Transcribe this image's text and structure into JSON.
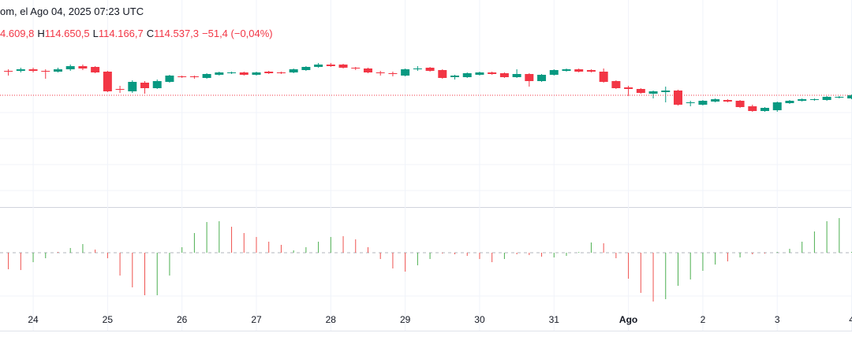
{
  "header": {
    "title": "om, el Ago 04, 2025 07:23 UTC",
    "ohlc": [
      "4.609,8",
      "H",
      "114.650,5",
      "L",
      "114.166,7",
      "C",
      "114.537,3",
      "−51,4 (−0,04%)"
    ]
  },
  "chart_data": [
    {
      "type": "candlestick",
      "up_color": "#089981",
      "down_color": "#f23645",
      "price_line_color": "#f23645",
      "ylim": [
        100600,
        123800
      ],
      "categories": [
        null,
        null,
        "24",
        null,
        null,
        null,
        null,
        null,
        "25",
        null,
        null,
        null,
        null,
        null,
        "26",
        null,
        null,
        null,
        null,
        null,
        "27",
        null,
        null,
        null,
        null,
        null,
        "28",
        null,
        null,
        null,
        null,
        null,
        "29",
        null,
        null,
        null,
        null,
        null,
        "30",
        null,
        null,
        null,
        null,
        null,
        "31",
        null,
        null,
        null,
        null,
        null,
        "Ago",
        null,
        null,
        null,
        null,
        null,
        "2",
        null,
        null,
        null,
        null,
        null,
        "3",
        null,
        null,
        null,
        null,
        null,
        "4"
      ],
      "values": [
        [
          117800,
          118000,
          117200,
          117700
        ],
        [
          117800,
          118200,
          117600,
          118000
        ],
        [
          118000,
          118200,
          117600,
          117800
        ],
        [
          117800,
          118000,
          116800,
          117700
        ],
        [
          117700,
          118200,
          117600,
          118000
        ],
        [
          118000,
          118600,
          117800,
          118400
        ],
        [
          118400,
          118600,
          117900,
          118100
        ],
        [
          118300,
          118400,
          117500,
          117600
        ],
        [
          117700,
          117800,
          115100,
          115200
        ],
        [
          115500,
          115900,
          115000,
          115400
        ],
        [
          115200,
          116600,
          115000,
          116400
        ],
        [
          116300,
          116500,
          114900,
          115600
        ],
        [
          115600,
          116700,
          115500,
          116500
        ],
        [
          116400,
          117300,
          116300,
          117200
        ],
        [
          117100,
          117200,
          116900,
          117000
        ],
        [
          117100,
          117200,
          116800,
          117000
        ],
        [
          116900,
          117500,
          116800,
          117400
        ],
        [
          117300,
          117700,
          117200,
          117600
        ],
        [
          117500,
          117700,
          117400,
          117600
        ],
        [
          117600,
          117700,
          117200,
          117300
        ],
        [
          117300,
          117700,
          117200,
          117600
        ],
        [
          117700,
          117800,
          117400,
          117500
        ],
        [
          117600,
          117700,
          117400,
          117500
        ],
        [
          117600,
          118100,
          117500,
          118000
        ],
        [
          117900,
          118400,
          117800,
          118300
        ],
        [
          118300,
          118800,
          118200,
          118600
        ],
        [
          118600,
          118800,
          118300,
          118400
        ],
        [
          118600,
          118700,
          118100,
          118200
        ],
        [
          118200,
          118300,
          117900,
          118100
        ],
        [
          118100,
          118200,
          117500,
          117600
        ],
        [
          117600,
          117800,
          117200,
          117500
        ],
        [
          117500,
          117700,
          117100,
          117400
        ],
        [
          117200,
          118100,
          117100,
          118000
        ],
        [
          118000,
          118400,
          117800,
          118100
        ],
        [
          118200,
          118300,
          117700,
          117800
        ],
        [
          117900,
          118000,
          116800,
          116900
        ],
        [
          117000,
          117300,
          116700,
          117200
        ],
        [
          117000,
          117600,
          116900,
          117500
        ],
        [
          117300,
          117700,
          117200,
          117600
        ],
        [
          117600,
          117700,
          117300,
          117400
        ],
        [
          117500,
          117600,
          116900,
          117000
        ],
        [
          117000,
          118000,
          116900,
          117400
        ],
        [
          117400,
          117500,
          115800,
          116500
        ],
        [
          116500,
          117400,
          116400,
          117300
        ],
        [
          117300,
          118000,
          117200,
          117900
        ],
        [
          117800,
          118100,
          117700,
          118000
        ],
        [
          118000,
          118100,
          117600,
          117700
        ],
        [
          117900,
          118000,
          117600,
          117700
        ],
        [
          117700,
          118100,
          116300,
          116400
        ],
        [
          116500,
          116600,
          115500,
          115600
        ],
        [
          115700,
          115900,
          114600,
          115500
        ],
        [
          115500,
          115600,
          114900,
          115000
        ],
        [
          114900,
          115300,
          114300,
          115200
        ],
        [
          115100,
          115800,
          113800,
          115300
        ],
        [
          115300,
          115400,
          113400,
          113500
        ],
        [
          113700,
          114000,
          113300,
          113800
        ],
        [
          113500,
          114100,
          113400,
          114000
        ],
        [
          113900,
          114300,
          113800,
          114200
        ],
        [
          114100,
          114200,
          113800,
          113900
        ],
        [
          114000,
          114100,
          113100,
          113200
        ],
        [
          113300,
          113500,
          112600,
          112700
        ],
        [
          112700,
          113200,
          112600,
          113100
        ],
        [
          112800,
          113900,
          112600,
          113800
        ],
        [
          113700,
          114100,
          113600,
          114000
        ],
        [
          114000,
          114300,
          113900,
          114200
        ],
        [
          114100,
          114300,
          114000,
          114200
        ],
        [
          114100,
          114600,
          114000,
          114500
        ],
        [
          114400,
          114600,
          114300,
          114500
        ],
        [
          114300,
          114800,
          114200,
          114700
        ]
      ]
    },
    {
      "type": "bar",
      "ylim": [
        -95,
        55
      ],
      "values": [
        -21,
        -22,
        -12,
        -7,
        1,
        6,
        11,
        4,
        -7,
        -29,
        -44,
        -54,
        -54,
        -29,
        7,
        25,
        39,
        40,
        33,
        25,
        20,
        14,
        10,
        3,
        7,
        14,
        20,
        21,
        17,
        7,
        -8,
        -20,
        -24,
        -16,
        -8,
        -1,
        -2,
        -4,
        -8,
        -12,
        -8,
        -2,
        -3,
        -5,
        -6,
        -4,
        1,
        13,
        12,
        -7,
        -33,
        -51,
        -62,
        -59,
        -42,
        -34,
        -23,
        -15,
        -11,
        -6,
        -2,
        -1,
        1,
        5,
        14,
        27,
        40,
        44,
        1
      ],
      "colors": [
        "#ef5350",
        "#ef5350",
        "#4caf50",
        "#4caf50",
        "#ef5350",
        "#4caf50",
        "#4caf50",
        "#ef5350",
        "#ef5350",
        "#ef5350",
        "#ef5350",
        "#ef5350",
        "#4caf50",
        "#4caf50",
        "#4caf50",
        "#4caf50",
        "#4caf50",
        "#4caf50",
        "#ef5350",
        "#ef5350",
        "#ef5350",
        "#ef5350",
        "#ef5350",
        "#4caf50",
        "#4caf50",
        "#4caf50",
        "#4caf50",
        "#ef5350",
        "#ef5350",
        "#ef5350",
        "#ef5350",
        "#ef5350",
        "#ef5350",
        "#4caf50",
        "#4caf50",
        "#ef5350",
        "#ef5350",
        "#ef5350",
        "#ef5350",
        "#ef5350",
        "#4caf50",
        "#ef5350",
        "#ef5350",
        "#ef5350",
        "#4caf50",
        "#4caf50",
        "#4caf50",
        "#4caf50",
        "#ef5350",
        "#ef5350",
        "#ef5350",
        "#ef5350",
        "#ef5350",
        "#4caf50",
        "#4caf50",
        "#4caf50",
        "#4caf50",
        "#4caf50",
        "#ef5350",
        "#4caf50",
        "#ef5350",
        "#ef5350",
        "#4caf50",
        "#4caf50",
        "#4caf50",
        "#4caf50",
        "#4caf50",
        "#4caf50",
        "#4caf50"
      ]
    }
  ]
}
